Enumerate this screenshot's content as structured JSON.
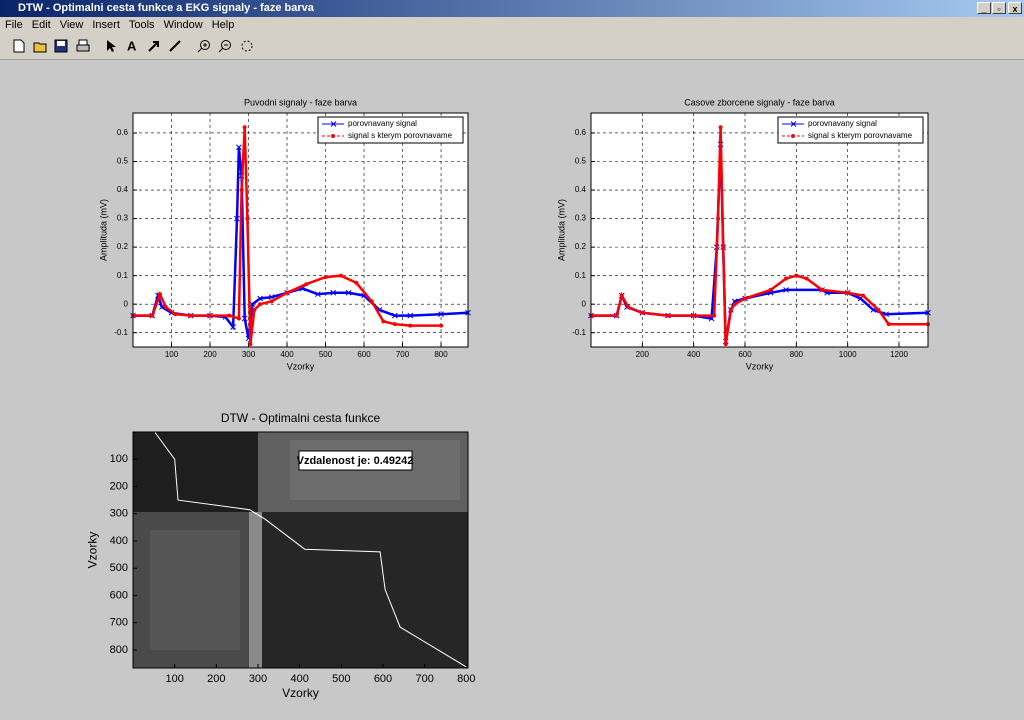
{
  "window": {
    "title": "DTW - Optimalni cesta funkce a EKG signaly - faze barva",
    "menu": [
      "File",
      "Edit",
      "View",
      "Insert",
      "Tools",
      "Window",
      "Help"
    ]
  },
  "chart_data": [
    {
      "type": "line",
      "title": "Puvodni signaly - faze barva",
      "xlabel": "Vzorky",
      "ylabel": "Amplituda (mV)",
      "xlim": [
        0,
        870
      ],
      "ylim": [
        -0.15,
        0.67
      ],
      "xticks": [
        100,
        200,
        300,
        400,
        500,
        600,
        700,
        800
      ],
      "yticks": [
        -0.1,
        0,
        0.1,
        0.2,
        0.3,
        0.4,
        0.5,
        0.6
      ],
      "grid": true,
      "legend": "northeast",
      "series": [
        {
          "name": "porovnavany signal",
          "color": "#0000ff",
          "marker": "x",
          "x": [
            0,
            50,
            65,
            75,
            100,
            150,
            200,
            240,
            260,
            270,
            275,
            282,
            290,
            300,
            310,
            330,
            360,
            400,
            440,
            480,
            520,
            560,
            600,
            640,
            680,
            720,
            800,
            870
          ],
          "values": [
            -0.04,
            -0.04,
            0.03,
            -0.01,
            -0.03,
            -0.04,
            -0.04,
            -0.045,
            -0.08,
            0.3,
            0.55,
            0.45,
            -0.05,
            -0.12,
            0.0,
            0.02,
            0.025,
            0.04,
            0.055,
            0.035,
            0.04,
            0.04,
            0.03,
            -0.02,
            -0.04,
            -0.04,
            -0.035,
            -0.03
          ]
        },
        {
          "name": "signal s kterym porovnavame",
          "color": "#ff0000",
          "marker": "o",
          "x": [
            0,
            50,
            70,
            85,
            110,
            150,
            200,
            250,
            275,
            282,
            290,
            297,
            305,
            315,
            330,
            360,
            400,
            450,
            500,
            540,
            580,
            620,
            650,
            680,
            720,
            800
          ],
          "values": [
            -0.04,
            -0.04,
            0.035,
            -0.01,
            -0.035,
            -0.04,
            -0.04,
            -0.04,
            -0.05,
            0.4,
            0.62,
            0.3,
            -0.14,
            -0.02,
            0.0,
            0.01,
            0.04,
            0.07,
            0.095,
            0.1,
            0.075,
            0.01,
            -0.06,
            -0.07,
            -0.075,
            -0.075
          ]
        }
      ]
    },
    {
      "type": "line",
      "title": "Casove zborcene signaly - faze barva",
      "xlabel": "Vzorky",
      "ylabel": "Amplituda (mV)",
      "xlim": [
        0,
        1313
      ],
      "ylim": [
        -0.15,
        0.67
      ],
      "xticks": [
        200,
        400,
        600,
        800,
        1000,
        1200
      ],
      "yticks": [
        -0.1,
        0,
        0.1,
        0.2,
        0.3,
        0.4,
        0.5,
        0.6
      ],
      "grid": true,
      "legend": "northeast",
      "series": [
        {
          "name": "porovnavany signal",
          "color": "#0000ff",
          "marker": "x",
          "x": [
            0,
            100,
            120,
            140,
            200,
            300,
            400,
            470,
            490,
            505,
            515,
            525,
            545,
            560,
            600,
            700,
            760,
            900,
            920,
            1000,
            1050,
            1100,
            1150,
            1313
          ],
          "values": [
            -0.04,
            -0.04,
            0.03,
            -0.01,
            -0.03,
            -0.04,
            -0.04,
            -0.05,
            0.2,
            0.56,
            0.2,
            -0.13,
            -0.02,
            0.01,
            0.02,
            0.04,
            0.05,
            0.05,
            0.04,
            0.04,
            0.02,
            -0.02,
            -0.035,
            -0.03
          ]
        },
        {
          "name": "signal s kterym porovnavame",
          "color": "#ff0000",
          "marker": "o",
          "x": [
            0,
            100,
            120,
            145,
            200,
            300,
            400,
            480,
            495,
            505,
            515,
            525,
            545,
            560,
            600,
            700,
            760,
            800,
            840,
            900,
            1000,
            1060,
            1120,
            1160,
            1313
          ],
          "values": [
            -0.04,
            -0.04,
            0.03,
            -0.01,
            -0.03,
            -0.04,
            -0.04,
            -0.04,
            0.3,
            0.62,
            0.2,
            -0.14,
            -0.02,
            0.0,
            0.02,
            0.05,
            0.09,
            0.1,
            0.09,
            0.05,
            0.04,
            0.03,
            -0.02,
            -0.07,
            -0.07
          ]
        }
      ]
    },
    {
      "type": "image",
      "title": "DTW - Optimalni cesta funkce",
      "xlabel": "Vzorky",
      "ylabel": "Vzorky",
      "xlim": [
        0,
        804
      ],
      "ylim": [
        0,
        866
      ],
      "y_reversed": true,
      "xticks": [
        100,
        200,
        300,
        400,
        500,
        600,
        700,
        800
      ],
      "yticks": [
        100,
        200,
        300,
        400,
        500,
        600,
        700,
        800
      ],
      "annotation": "Vzdalenost je: 0.49242",
      "path": {
        "color": "#ffffff",
        "x": [
          52,
          100,
          108,
          280,
          317,
          412,
          593,
          605,
          641,
          800
        ],
        "values": [
          0,
          100,
          250,
          285,
          320,
          430,
          440,
          578,
          716,
          862
        ]
      }
    }
  ]
}
